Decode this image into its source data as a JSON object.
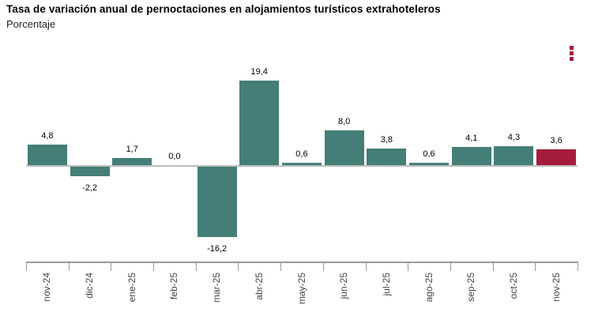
{
  "header": {
    "title": "Tasa de variación anual de pernoctaciones en alojamientos turísticos extrahoteleros",
    "subtitle": "Porcentaje"
  },
  "menu": {
    "icon": "vertical-ellipsis-menu",
    "color": "#a41c3c"
  },
  "chart_data": {
    "type": "bar",
    "title": "Tasa de variación anual de pernoctaciones en alojamientos turísticos extrahoteleros",
    "subtitle": "Porcentaje",
    "categories": [
      "nov-24",
      "dic-24",
      "ene-25",
      "feb-25",
      "mar-25",
      "abr-25",
      "may-25",
      "jun-25",
      "jul-25",
      "ago-25",
      "sep-25",
      "oct-25",
      "nov-25"
    ],
    "values": [
      4.8,
      -2.2,
      1.7,
      0.0,
      -16.2,
      19.4,
      0.6,
      8.0,
      3.8,
      0.6,
      4.1,
      4.3,
      3.6
    ],
    "value_labels": [
      "4,8",
      "-2,2",
      "1,7",
      "0,0",
      "-16,2",
      "19,4",
      "0,6",
      "8,0",
      "3,8",
      "0,6",
      "4,1",
      "4,3",
      "3,6"
    ],
    "xlabel": "",
    "ylabel": "Porcentaje",
    "ylim": [
      -22,
      25
    ],
    "grid": false,
    "legend": false,
    "y_axis_visible": false,
    "data_labels_visible": true,
    "bar_color": "#447e77",
    "highlight_color": "#a41c3c",
    "highlight_index": 12,
    "zero_line_color": "#bdbdbd",
    "axis_color": "#999999"
  }
}
